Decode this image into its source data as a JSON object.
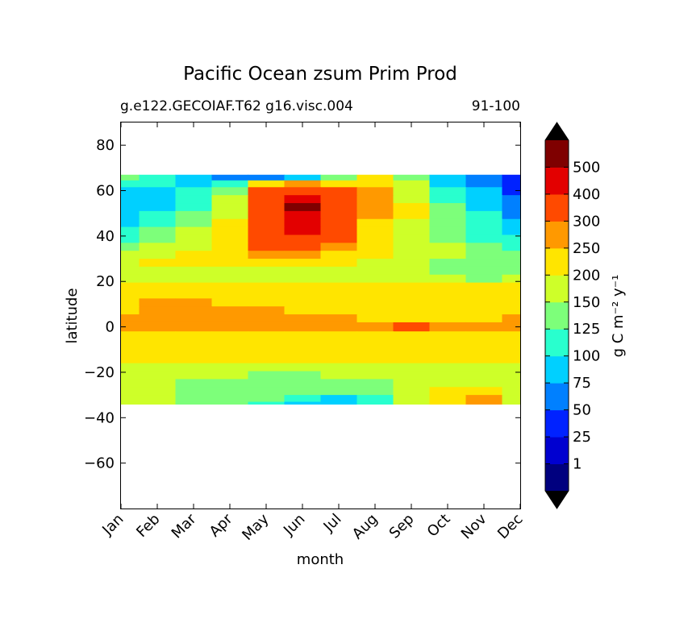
{
  "chart_data": {
    "type": "heatmap",
    "title": "Pacific Ocean zsum Prim Prod",
    "subtitle_left": "g.e122.GECOIAF.T62 g16.visc.004",
    "subtitle_right": "91-100",
    "xlabel": "month",
    "ylabel": "latitude",
    "x_ticks": [
      "Jan",
      "Feb",
      "Mar",
      "Apr",
      "May",
      "Jun",
      "Jul",
      "Aug",
      "Sep",
      "Oct",
      "Nov",
      "Dec"
    ],
    "y_ticks": [
      80,
      60,
      40,
      20,
      0,
      -20,
      -40,
      -60
    ],
    "ylim": [
      -80,
      90
    ],
    "data_lat_range": [
      -34,
      67
    ],
    "colorbar": {
      "label": "g C m⁻² y⁻¹",
      "extend": "both",
      "tick_labels": [
        "1",
        "25",
        "50",
        "75",
        "100",
        "125",
        "150",
        "200",
        "250",
        "300",
        "400",
        "500"
      ],
      "colors": [
        "#00007f",
        "#0000d0",
        "#0022ff",
        "#0080ff",
        "#00d0ff",
        "#29ffce",
        "#7dff7a",
        "#ceff29",
        "#ffe500",
        "#ff9900",
        "#ff4a00",
        "#e30000",
        "#7f0000"
      ],
      "under_color": "#000000",
      "over_color": "#000000"
    },
    "rows": [
      {
        "lat": 66,
        "v": [
          6,
          5,
          4,
          3,
          3,
          4,
          6,
          8,
          6,
          4,
          3,
          2
        ]
      },
      {
        "lat": 63,
        "v": [
          5,
          5,
          4,
          5,
          8,
          9,
          8,
          8,
          7,
          4,
          3,
          2
        ]
      },
      {
        "lat": 60,
        "v": [
          4,
          4,
          5,
          6,
          10,
          10,
          10,
          9,
          7,
          5,
          4,
          2
        ]
      },
      {
        "lat": 56,
        "v": [
          4,
          4,
          5,
          7,
          10,
          11,
          10,
          9,
          7,
          5,
          4,
          3
        ]
      },
      {
        "lat": 53,
        "v": [
          4,
          4,
          5,
          7,
          10,
          12,
          10,
          9,
          8,
          6,
          4,
          3
        ]
      },
      {
        "lat": 49,
        "v": [
          4,
          5,
          6,
          7,
          10,
          11,
          10,
          9,
          8,
          6,
          5,
          3
        ]
      },
      {
        "lat": 46,
        "v": [
          4,
          5,
          6,
          8,
          10,
          11,
          10,
          8,
          7,
          6,
          5,
          4
        ]
      },
      {
        "lat": 42,
        "v": [
          5,
          6,
          7,
          8,
          10,
          11,
          10,
          8,
          7,
          6,
          5,
          4
        ]
      },
      {
        "lat": 39,
        "v": [
          5,
          6,
          7,
          8,
          10,
          10,
          10,
          8,
          7,
          6,
          5,
          5
        ]
      },
      {
        "lat": 35,
        "v": [
          6,
          7,
          7,
          8,
          10,
          10,
          9,
          8,
          7,
          7,
          6,
          5
        ]
      },
      {
        "lat": 32,
        "v": [
          7,
          7,
          8,
          8,
          9,
          9,
          8,
          8,
          7,
          7,
          6,
          6
        ]
      },
      {
        "lat": 28,
        "v": [
          7,
          8,
          8,
          8,
          8,
          8,
          8,
          7,
          7,
          6,
          6,
          6
        ]
      },
      {
        "lat": 25,
        "v": [
          7,
          7,
          7,
          7,
          7,
          7,
          7,
          7,
          7,
          6,
          6,
          6
        ]
      },
      {
        "lat": 21,
        "v": [
          7,
          7,
          7,
          7,
          7,
          7,
          7,
          7,
          7,
          7,
          6,
          7
        ]
      },
      {
        "lat": 18,
        "v": [
          8,
          8,
          8,
          8,
          8,
          8,
          8,
          8,
          8,
          8,
          8,
          8
        ]
      },
      {
        "lat": 14,
        "v": [
          8,
          8,
          8,
          8,
          8,
          8,
          8,
          8,
          8,
          8,
          8,
          8
        ]
      },
      {
        "lat": 11,
        "v": [
          8,
          9,
          9,
          8,
          8,
          8,
          8,
          8,
          8,
          8,
          8,
          8
        ]
      },
      {
        "lat": 7,
        "v": [
          8,
          9,
          9,
          9,
          9,
          8,
          8,
          8,
          8,
          8,
          8,
          8
        ]
      },
      {
        "lat": 4,
        "v": [
          9,
          9,
          9,
          9,
          9,
          9,
          9,
          8,
          8,
          8,
          8,
          9
        ]
      },
      {
        "lat": 0,
        "v": [
          9,
          9,
          9,
          9,
          9,
          9,
          9,
          9,
          10,
          9,
          9,
          9
        ]
      },
      {
        "lat": -4,
        "v": [
          8,
          8,
          8,
          8,
          8,
          8,
          8,
          8,
          8,
          8,
          8,
          8
        ]
      },
      {
        "lat": -7,
        "v": [
          8,
          8,
          8,
          8,
          8,
          8,
          8,
          8,
          8,
          8,
          8,
          8
        ]
      },
      {
        "lat": -11,
        "v": [
          8,
          8,
          8,
          8,
          8,
          8,
          8,
          8,
          8,
          8,
          8,
          8
        ]
      },
      {
        "lat": -14,
        "v": [
          8,
          8,
          8,
          8,
          8,
          8,
          8,
          8,
          8,
          8,
          8,
          8
        ]
      },
      {
        "lat": -18,
        "v": [
          7,
          7,
          7,
          7,
          7,
          7,
          7,
          7,
          7,
          7,
          7,
          7
        ]
      },
      {
        "lat": -21,
        "v": [
          7,
          7,
          7,
          7,
          6,
          6,
          7,
          7,
          7,
          7,
          7,
          7
        ]
      },
      {
        "lat": -25,
        "v": [
          7,
          7,
          6,
          6,
          6,
          6,
          6,
          6,
          7,
          7,
          7,
          7
        ]
      },
      {
        "lat": -28,
        "v": [
          7,
          7,
          6,
          6,
          6,
          6,
          6,
          6,
          7,
          8,
          8,
          7
        ]
      },
      {
        "lat": -32,
        "v": [
          7,
          7,
          6,
          6,
          6,
          5,
          4,
          5,
          7,
          8,
          9,
          7
        ]
      },
      {
        "lat": -34,
        "v": [
          7,
          7,
          6,
          6,
          5,
          4,
          4,
          5,
          7,
          8,
          9,
          7
        ]
      }
    ]
  }
}
